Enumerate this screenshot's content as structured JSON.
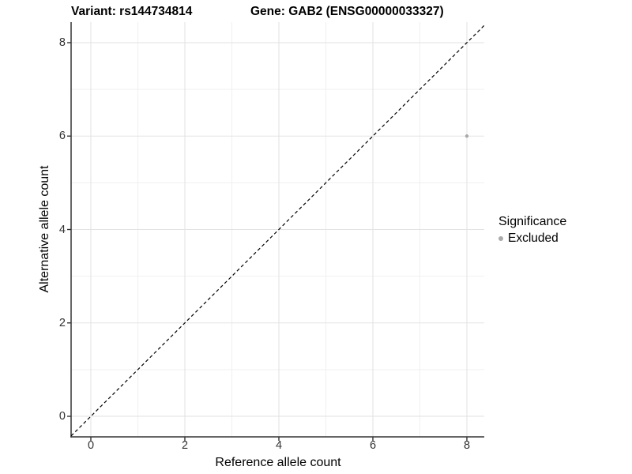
{
  "title": {
    "variant": "Variant: rs144734814",
    "gene": "Gene: GAB2 (ENSG00000033327)"
  },
  "axes": {
    "x_label": "Reference allele count",
    "y_label": "Alternative allele count"
  },
  "legend": {
    "title": "Significance",
    "items": [
      {
        "label": "Excluded",
        "color": "#aaaaaa"
      }
    ]
  },
  "colors": {
    "background": "#ffffff",
    "grid_major": "#e3e3e3",
    "grid_minor": "#f0f0f0",
    "axis_line": "#333333",
    "tick_mark": "#333333",
    "tick_text": "#333333",
    "reference_line": "#000000",
    "point": "#aaaaaa"
  },
  "chart_data": {
    "type": "scatter",
    "title_left": "Variant: rs144734814",
    "title_right": "Gene: GAB2 (ENSG00000033327)",
    "xlabel": "Reference allele count",
    "ylabel": "Alternative allele count",
    "xlim": [
      -0.42,
      8.37
    ],
    "ylim": [
      -0.44,
      8.44
    ],
    "xticks": [
      0,
      2,
      4,
      6,
      8
    ],
    "yticks": [
      0,
      2,
      4,
      6,
      8
    ],
    "x_minor_gridlines": [
      1,
      3,
      5,
      7
    ],
    "y_minor_gridlines": [
      1,
      3,
      5,
      7
    ],
    "grid": true,
    "legend_position": "right",
    "series": [
      {
        "name": "Excluded",
        "color": "#aaaaaa",
        "points": [
          {
            "x": 8,
            "y": 6
          }
        ]
      }
    ],
    "reference_line": {
      "kind": "identity",
      "slope": 1,
      "intercept": 0,
      "style": "dashed",
      "color": "#000000"
    }
  }
}
